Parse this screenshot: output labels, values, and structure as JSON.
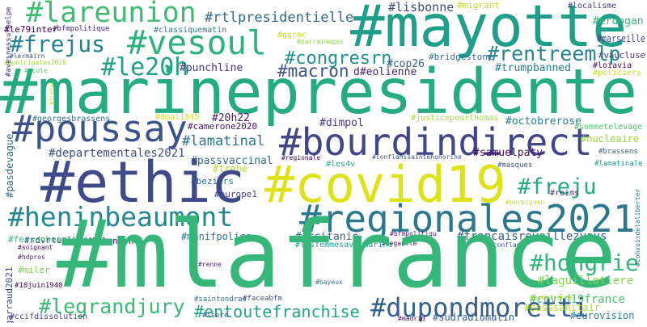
{
  "words": [
    "#lareunion",
    "#mayotte",
    "#rtlpresidentielle",
    "#lisbonne",
    "#migrant",
    "#localisme",
    "#erdogan",
    "#marseille",
    "#vaucluse",
    "#le79inter",
    "#bfmpolitique",
    "#classiquematin",
    "#frejus",
    "#vesoul",
    "#ggrmc",
    "#parrainages",
    "#congresrn",
    "#rentreemlp",
    "#le20h",
    "#lermairn",
    "#municipales2020",
    "#ecole",
    "#cop26",
    "#bridgestone",
    "#punchline",
    "#macron",
    "d#eolienne",
    "#trumpbanned",
    "#loiavia",
    "#policiers",
    "#marinepresidente",
    "#georgesbrassens",
    "#8mai1945",
    "#justicepourthomas",
    "#poussay",
    "#camerone2020",
    "#dimpol",
    "#octobrerose",
    "#sommetelevage",
    "#20h22",
    "#bourdindirect",
    "#lamatinal",
    "#nucleaire",
    "#departementales2021",
    "#brassens",
    "#passvaccinal",
    "#regionale",
    "#les4v",
    "#conflanssaintehonorine",
    "#samuelpaty",
    "#masques",
    "#lamatinale",
    "#trebe",
    "#beziers",
    "#ethic",
    "#covid19",
    "#freju",
    "#europe1",
    "#reims",
    "#perpignan",
    "#heninbeaumont",
    "#regionales2021",
    "#rdvrtuelkrief",
    "#fessenheim",
    "#soignant",
    "#hdpros",
    "#miler",
    "d#alencon",
    "#manifpolice",
    "#occitanie",
    "#bfmpolitiqu",
    "#francaisreveillezvous",
    "#lesfemmesavecmarine",
    "#degaulle",
    "#conflans",
    "#mlafrance",
    "#hongrie",
    "#renne",
    "#laguillotiere",
    "#bayeux",
    "#18juin1940",
    "#covid19france",
    "#legrandjury",
    "#saintondras",
    "#faceabfm",
    "#entoutefranchise",
    "#dupondmoretti",
    "#xvdefrance",
    "#passsanitair",
    "#ccifdissolution",
    "#isere",
    "#madrid",
    "#sudradiomatin",
    "#eurovision",
    "#avesnessurhelpe",
    "#franzl",
    "#pasdevague",
    "#garraud2021",
    "#convoisdelaliberter"
  ]
}
